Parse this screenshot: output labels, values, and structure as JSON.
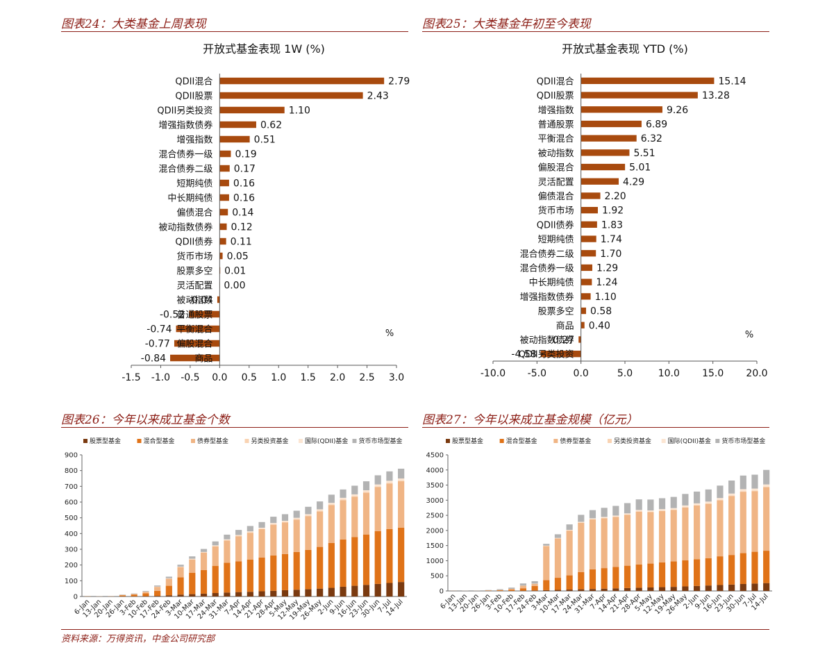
{
  "sections": {
    "c24": "图表24：大类基金上周表现",
    "c25": "图表25：大类基金年初至今表现",
    "c26": "图表26：今年以来成立基金个数",
    "c27": "图表27：今年以来成立基金规模（亿元）"
  },
  "source": "资料来源：万得资讯，中金公司研究部",
  "colors": {
    "bar": "#a84a0e",
    "series": [
      "#7a3a10",
      "#e07318",
      "#f0b585",
      "#f9d3b3",
      "#fce6d3",
      "#b3b3b3"
    ]
  },
  "chart_data": [
    {
      "type": "bar",
      "orientation": "horizontal",
      "title": "开放式基金表现 1W (%)",
      "unit_label": "%",
      "categories": [
        "QDII混合",
        "QDII股票",
        "QDII另类投资",
        "增强指数债券",
        "增强指数",
        "混合债券一级",
        "混合债券二级",
        "短期纯债",
        "中长期纯债",
        "偏债混合",
        "被动指数债券",
        "QDII债券",
        "货币市场",
        "股票多空",
        "灵活配置",
        "被动指数",
        "普通股票",
        "平衡混合",
        "偏股混合",
        "商品"
      ],
      "values": [
        2.79,
        2.43,
        1.1,
        0.62,
        0.51,
        0.19,
        0.17,
        0.16,
        0.16,
        0.14,
        0.12,
        0.11,
        0.05,
        0.01,
        0.0,
        -0.04,
        -0.52,
        -0.74,
        -0.77,
        -0.84
      ],
      "value_labels": [
        "2.79",
        "2.43",
        "1.10",
        "0.62",
        "0.51",
        "0.19",
        "0.17",
        "0.16",
        "0.16",
        "0.14",
        "0.12",
        "0.11",
        "0.05",
        "0.01",
        "0.00",
        "-0.04",
        "-0.52",
        "-0.74",
        "-0.77",
        "-0.84"
      ],
      "xlim": [
        -1.5,
        3.0
      ],
      "xticks": [
        "-1.5",
        "-1.0",
        "-0.5",
        "0.0",
        "0.5",
        "1.0",
        "1.5",
        "2.0",
        "2.5",
        "3.0"
      ]
    },
    {
      "type": "bar",
      "orientation": "horizontal",
      "title": "开放式基金表现 YTD (%)",
      "unit_label": "%",
      "categories": [
        "QDII混合",
        "QDII股票",
        "增强指数",
        "普通股票",
        "平衡混合",
        "被动指数",
        "偏股混合",
        "灵活配置",
        "偏债混合",
        "货币市场",
        "QDII债券",
        "短期纯债",
        "混合债券二级",
        "混合债券一级",
        "中长期纯债",
        "增强指数债券",
        "股票多空",
        "商品",
        "被动指数债券",
        "QDII另类投资"
      ],
      "values": [
        15.14,
        13.28,
        9.26,
        6.89,
        6.32,
        5.51,
        5.01,
        4.29,
        2.2,
        1.92,
        1.83,
        1.74,
        1.7,
        1.29,
        1.24,
        1.1,
        0.58,
        0.4,
        -0.27,
        -4.58
      ],
      "value_labels": [
        "15.14",
        "13.28",
        "9.26",
        "6.89",
        "6.32",
        "5.51",
        "5.01",
        "4.29",
        "2.20",
        "1.92",
        "1.83",
        "1.74",
        "1.70",
        "1.29",
        "1.24",
        "1.10",
        "0.58",
        "0.40",
        "-0.27",
        "-4.58"
      ],
      "xlim": [
        -10,
        20
      ],
      "xticks": [
        "-10.0",
        "-5.0",
        "0.0",
        "5.0",
        "10.0",
        "15.0",
        "20.0"
      ]
    },
    {
      "type": "bar",
      "stacked": true,
      "title": "",
      "categories": [
        "6-Jan",
        "13-Jan",
        "20-Jan",
        "26-Jan",
        "3-Feb",
        "10-Feb",
        "17-Feb",
        "24-Feb",
        "3-Mar",
        "10-Mar",
        "17-Mar",
        "24-Mar",
        "31-Mar",
        "7-Apr",
        "14-Apr",
        "21-Apr",
        "28-Apr",
        "5-May",
        "12-May",
        "19-May",
        "26-May",
        "2-Jun",
        "9-Jun",
        "16-Jun",
        "23-Jun",
        "30-Jun",
        "7-Jul",
        "14-Jul"
      ],
      "legend": [
        "股票型基金",
        "混合型基金",
        "债券型基金",
        "另类投资基金",
        "国际(QDII)基金",
        "货币市场型基金"
      ],
      "series": [
        {
          "name": "股票型基金",
          "values": [
            0,
            0,
            0,
            1,
            1,
            2,
            4,
            8,
            12,
            15,
            18,
            22,
            25,
            28,
            30,
            33,
            36,
            40,
            43,
            46,
            50,
            55,
            62,
            68,
            74,
            80,
            86,
            92
          ]
        },
        {
          "name": "混合型基金",
          "values": [
            1,
            1,
            1,
            6,
            10,
            18,
            32,
            60,
            110,
            135,
            150,
            172,
            190,
            195,
            205,
            215,
            225,
            230,
            240,
            250,
            265,
            285,
            300,
            310,
            320,
            335,
            342,
            345
          ]
        },
        {
          "name": "债券型基金",
          "values": [
            0,
            0,
            1,
            3,
            5,
            10,
            25,
            45,
            65,
            85,
            110,
            125,
            140,
            160,
            170,
            180,
            195,
            200,
            205,
            215,
            225,
            240,
            250,
            255,
            265,
            280,
            290,
            295
          ]
        },
        {
          "name": "另类投资基金",
          "values": [
            0,
            0,
            0,
            0,
            0,
            0,
            1,
            1,
            1,
            2,
            2,
            2,
            3,
            3,
            3,
            3,
            4,
            4,
            4,
            4,
            5,
            5,
            5,
            5,
            5,
            5,
            5,
            5
          ]
        },
        {
          "name": "国际(QDII)基金",
          "values": [
            0,
            0,
            0,
            0,
            0,
            1,
            1,
            2,
            2,
            3,
            3,
            4,
            5,
            5,
            6,
            6,
            7,
            7,
            8,
            8,
            9,
            10,
            10,
            11,
            11,
            12,
            12,
            13
          ]
        },
        {
          "name": "货币市场型基金",
          "values": [
            0,
            1,
            1,
            2,
            3,
            4,
            7,
            10,
            12,
            15,
            19,
            25,
            30,
            32,
            34,
            36,
            40,
            42,
            45,
            47,
            50,
            52,
            53,
            55,
            57,
            58,
            60,
            62
          ]
        }
      ],
      "ylim": [
        0,
        900
      ],
      "yticks": [
        "0",
        "100",
        "200",
        "300",
        "400",
        "500",
        "600",
        "700",
        "800",
        "900"
      ]
    },
    {
      "type": "bar",
      "stacked": true,
      "title": "",
      "categories": [
        "6-Jan",
        "13-Jan",
        "20-Jan",
        "26-Jan",
        "3-Feb",
        "10-Feb",
        "17-Feb",
        "24-Feb",
        "3-Mar",
        "10-Mar",
        "17-Mar",
        "24-Mar",
        "31-Mar",
        "7-Apr",
        "14-Apr",
        "21-Apr",
        "28-Apr",
        "5-May",
        "12-May",
        "19-May",
        "26-May",
        "2-Jun",
        "9-Jun",
        "16-Jun",
        "23-Jun",
        "30-Jun",
        "7-Jul",
        "14-Jul"
      ],
      "legend": [
        "股票型基金",
        "混合型基金",
        "债券型基金",
        "另类投资基金",
        "国际(QDII)基金",
        "货币市场型基金"
      ],
      "series": [
        {
          "name": "股票型基金",
          "values": [
            0,
            0,
            0,
            1,
            2,
            3,
            8,
            15,
            25,
            35,
            45,
            55,
            65,
            75,
            85,
            95,
            105,
            115,
            125,
            135,
            150,
            165,
            180,
            195,
            210,
            230,
            245,
            260
          ]
        },
        {
          "name": "混合型基金",
          "values": [
            2,
            2,
            3,
            10,
            20,
            40,
            80,
            150,
            330,
            400,
            470,
            570,
            650,
            680,
            710,
            740,
            770,
            790,
            820,
            840,
            860,
            880,
            900,
            950,
            980,
            1020,
            1050,
            1070
          ]
        },
        {
          "name": "债券型基金",
          "values": [
            1,
            1,
            2,
            5,
            10,
            25,
            85,
            70,
            1130,
            1300,
            1480,
            1630,
            1650,
            1650,
            1650,
            1680,
            1750,
            1700,
            1700,
            1700,
            1750,
            1780,
            1800,
            1850,
            1950,
            2030,
            2000,
            2100
          ]
        },
        {
          "name": "另类投资基金",
          "values": [
            0,
            0,
            0,
            0,
            0,
            0,
            1,
            2,
            3,
            4,
            5,
            6,
            7,
            8,
            9,
            10,
            11,
            12,
            13,
            14,
            15,
            16,
            17,
            18,
            19,
            20,
            21,
            22
          ]
        },
        {
          "name": "国际(QDII)基金",
          "values": [
            0,
            0,
            0,
            0,
            0,
            2,
            4,
            6,
            10,
            15,
            20,
            25,
            30,
            35,
            38,
            40,
            42,
            45,
            48,
            50,
            52,
            55,
            58,
            60,
            62,
            65,
            68,
            70
          ]
        },
        {
          "name": "货币市场型基金",
          "values": [
            0,
            5,
            10,
            15,
            25,
            40,
            70,
            80,
            60,
            120,
            180,
            230,
            270,
            300,
            320,
            340,
            350,
            360,
            360,
            370,
            380,
            390,
            400,
            410,
            430,
            450,
            460,
            480
          ]
        }
      ],
      "ylim": [
        0,
        4500
      ],
      "yticks": [
        "0",
        "500",
        "1000",
        "1500",
        "2000",
        "2500",
        "3000",
        "3500",
        "4000",
        "4500"
      ]
    }
  ]
}
